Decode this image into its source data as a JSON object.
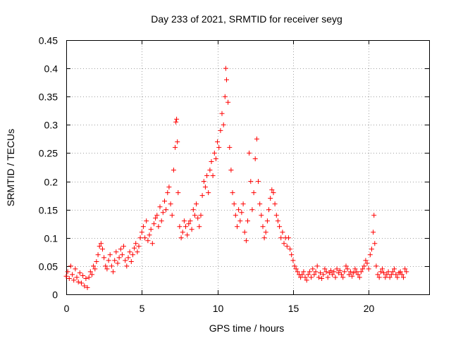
{
  "chart_data": {
    "type": "scatter",
    "title": "Day 233 of 2021, SRMTID for receiver seyg",
    "xlabel": "GPS time / hours",
    "ylabel": "SRMTID / TECUs",
    "xlim": [
      0,
      24
    ],
    "ylim": [
      0,
      0.45
    ],
    "xticks": [
      0,
      5,
      10,
      15,
      20
    ],
    "yticks": [
      0,
      0.05,
      0.1,
      0.15,
      0.2,
      0.25,
      0.3,
      0.35,
      0.4,
      0.45
    ],
    "xtick_labels": [
      "0",
      "5",
      "10",
      "15",
      "20"
    ],
    "ytick_labels": [
      "0",
      "0.05",
      "0.1",
      "0.15",
      "0.2",
      "0.25",
      "0.3",
      "0.35",
      "0.4",
      "0.45"
    ],
    "grid": true,
    "marker": "+",
    "color": "#ff0000",
    "series": [
      {
        "name": "SRMTID",
        "points": [
          [
            0.0,
            0.032
          ],
          [
            0.1,
            0.04
          ],
          [
            0.2,
            0.028
          ],
          [
            0.3,
            0.05
          ],
          [
            0.4,
            0.035
          ],
          [
            0.5,
            0.025
          ],
          [
            0.6,
            0.045
          ],
          [
            0.7,
            0.03
          ],
          [
            0.8,
            0.022
          ],
          [
            0.9,
            0.038
          ],
          [
            1.0,
            0.02
          ],
          [
            1.1,
            0.033
          ],
          [
            1.2,
            0.015
          ],
          [
            1.3,
            0.028
          ],
          [
            1.4,
            0.012
          ],
          [
            1.5,
            0.03
          ],
          [
            1.6,
            0.04
          ],
          [
            1.7,
            0.035
          ],
          [
            1.8,
            0.05
          ],
          [
            1.9,
            0.045
          ],
          [
            2.0,
            0.058
          ],
          [
            2.1,
            0.07
          ],
          [
            2.2,
            0.085
          ],
          [
            2.3,
            0.09
          ],
          [
            2.4,
            0.08
          ],
          [
            2.5,
            0.065
          ],
          [
            2.6,
            0.05
          ],
          [
            2.7,
            0.045
          ],
          [
            2.8,
            0.06
          ],
          [
            2.9,
            0.07
          ],
          [
            3.0,
            0.05
          ],
          [
            3.1,
            0.04
          ],
          [
            3.2,
            0.06
          ],
          [
            3.3,
            0.075
          ],
          [
            3.4,
            0.055
          ],
          [
            3.5,
            0.065
          ],
          [
            3.6,
            0.08
          ],
          [
            3.7,
            0.07
          ],
          [
            3.8,
            0.085
          ],
          [
            3.9,
            0.06
          ],
          [
            4.0,
            0.05
          ],
          [
            4.1,
            0.065
          ],
          [
            4.2,
            0.075
          ],
          [
            4.3,
            0.058
          ],
          [
            4.4,
            0.07
          ],
          [
            4.5,
            0.082
          ],
          [
            4.6,
            0.09
          ],
          [
            4.7,
            0.075
          ],
          [
            4.8,
            0.085
          ],
          [
            4.9,
            0.1
          ],
          [
            5.0,
            0.11
          ],
          [
            5.1,
            0.12
          ],
          [
            5.2,
            0.1
          ],
          [
            5.3,
            0.13
          ],
          [
            5.4,
            0.095
          ],
          [
            5.5,
            0.105
          ],
          [
            5.6,
            0.115
          ],
          [
            5.7,
            0.09
          ],
          [
            5.8,
            0.125
          ],
          [
            5.9,
            0.135
          ],
          [
            6.0,
            0.14
          ],
          [
            6.1,
            0.12
          ],
          [
            6.2,
            0.155
          ],
          [
            6.3,
            0.13
          ],
          [
            6.4,
            0.145
          ],
          [
            6.5,
            0.165
          ],
          [
            6.6,
            0.15
          ],
          [
            6.7,
            0.18
          ],
          [
            6.8,
            0.19
          ],
          [
            6.9,
            0.16
          ],
          [
            7.0,
            0.14
          ],
          [
            7.1,
            0.22
          ],
          [
            7.2,
            0.26
          ],
          [
            7.25,
            0.305
          ],
          [
            7.3,
            0.31
          ],
          [
            7.35,
            0.27
          ],
          [
            7.4,
            0.18
          ],
          [
            7.5,
            0.12
          ],
          [
            7.6,
            0.1
          ],
          [
            7.7,
            0.11
          ],
          [
            7.8,
            0.13
          ],
          [
            7.9,
            0.12
          ],
          [
            8.0,
            0.105
          ],
          [
            8.1,
            0.125
          ],
          [
            8.2,
            0.13
          ],
          [
            8.3,
            0.115
          ],
          [
            8.4,
            0.15
          ],
          [
            8.5,
            0.14
          ],
          [
            8.6,
            0.16
          ],
          [
            8.7,
            0.135
          ],
          [
            8.8,
            0.12
          ],
          [
            8.9,
            0.14
          ],
          [
            9.0,
            0.175
          ],
          [
            9.1,
            0.2
          ],
          [
            9.2,
            0.19
          ],
          [
            9.3,
            0.21
          ],
          [
            9.4,
            0.18
          ],
          [
            9.5,
            0.22
          ],
          [
            9.6,
            0.235
          ],
          [
            9.7,
            0.21
          ],
          [
            9.8,
            0.25
          ],
          [
            9.9,
            0.24
          ],
          [
            10.0,
            0.27
          ],
          [
            10.1,
            0.26
          ],
          [
            10.2,
            0.29
          ],
          [
            10.3,
            0.32
          ],
          [
            10.4,
            0.3
          ],
          [
            10.5,
            0.35
          ],
          [
            10.55,
            0.4
          ],
          [
            10.6,
            0.38
          ],
          [
            10.7,
            0.34
          ],
          [
            10.8,
            0.26
          ],
          [
            10.9,
            0.22
          ],
          [
            11.0,
            0.18
          ],
          [
            11.1,
            0.16
          ],
          [
            11.2,
            0.14
          ],
          [
            11.3,
            0.12
          ],
          [
            11.4,
            0.15
          ],
          [
            11.5,
            0.13
          ],
          [
            11.6,
            0.145
          ],
          [
            11.7,
            0.16
          ],
          [
            11.8,
            0.11
          ],
          [
            11.9,
            0.095
          ],
          [
            12.0,
            0.13
          ],
          [
            12.1,
            0.25
          ],
          [
            12.2,
            0.2
          ],
          [
            12.3,
            0.15
          ],
          [
            12.4,
            0.18
          ],
          [
            12.5,
            0.24
          ],
          [
            12.6,
            0.275
          ],
          [
            12.7,
            0.2
          ],
          [
            12.8,
            0.16
          ],
          [
            12.9,
            0.14
          ],
          [
            13.0,
            0.12
          ],
          [
            13.1,
            0.1
          ],
          [
            13.2,
            0.11
          ],
          [
            13.3,
            0.13
          ],
          [
            13.4,
            0.15
          ],
          [
            13.5,
            0.17
          ],
          [
            13.6,
            0.185
          ],
          [
            13.7,
            0.18
          ],
          [
            13.8,
            0.16
          ],
          [
            13.9,
            0.14
          ],
          [
            14.0,
            0.13
          ],
          [
            14.1,
            0.12
          ],
          [
            14.2,
            0.1
          ],
          [
            14.3,
            0.11
          ],
          [
            14.4,
            0.09
          ],
          [
            14.5,
            0.1
          ],
          [
            14.6,
            0.085
          ],
          [
            14.7,
            0.1
          ],
          [
            14.8,
            0.08
          ],
          [
            14.9,
            0.07
          ],
          [
            15.0,
            0.06
          ],
          [
            15.1,
            0.05
          ],
          [
            15.2,
            0.045
          ],
          [
            15.3,
            0.04
          ],
          [
            15.4,
            0.035
          ],
          [
            15.5,
            0.03
          ],
          [
            15.6,
            0.035
          ],
          [
            15.7,
            0.04
          ],
          [
            15.8,
            0.03
          ],
          [
            15.9,
            0.025
          ],
          [
            16.0,
            0.035
          ],
          [
            16.1,
            0.04
          ],
          [
            16.2,
            0.03
          ],
          [
            16.3,
            0.045
          ],
          [
            16.4,
            0.035
          ],
          [
            16.5,
            0.04
          ],
          [
            16.6,
            0.05
          ],
          [
            16.7,
            0.03
          ],
          [
            16.8,
            0.038
          ],
          [
            16.9,
            0.028
          ],
          [
            17.0,
            0.035
          ],
          [
            17.1,
            0.045
          ],
          [
            17.2,
            0.04
          ],
          [
            17.3,
            0.03
          ],
          [
            17.4,
            0.038
          ],
          [
            17.5,
            0.042
          ],
          [
            17.6,
            0.035
          ],
          [
            17.7,
            0.04
          ],
          [
            17.8,
            0.03
          ],
          [
            17.9,
            0.045
          ],
          [
            18.0,
            0.038
          ],
          [
            18.1,
            0.042
          ],
          [
            18.2,
            0.035
          ],
          [
            18.3,
            0.03
          ],
          [
            18.4,
            0.04
          ],
          [
            18.5,
            0.05
          ],
          [
            18.6,
            0.045
          ],
          [
            18.7,
            0.035
          ],
          [
            18.8,
            0.04
          ],
          [
            18.9,
            0.032
          ],
          [
            19.0,
            0.038
          ],
          [
            19.1,
            0.045
          ],
          [
            19.2,
            0.04
          ],
          [
            19.3,
            0.035
          ],
          [
            19.4,
            0.03
          ],
          [
            19.5,
            0.04
          ],
          [
            19.6,
            0.045
          ],
          [
            19.7,
            0.05
          ],
          [
            19.8,
            0.06
          ],
          [
            19.9,
            0.055
          ],
          [
            20.0,
            0.045
          ],
          [
            20.1,
            0.07
          ],
          [
            20.2,
            0.08
          ],
          [
            20.3,
            0.11
          ],
          [
            20.35,
            0.14
          ],
          [
            20.4,
            0.09
          ],
          [
            20.5,
            0.05
          ],
          [
            20.6,
            0.035
          ],
          [
            20.7,
            0.03
          ],
          [
            20.8,
            0.04
          ],
          [
            20.9,
            0.045
          ],
          [
            21.0,
            0.038
          ],
          [
            21.1,
            0.03
          ],
          [
            21.2,
            0.035
          ],
          [
            21.3,
            0.04
          ],
          [
            21.4,
            0.03
          ],
          [
            21.5,
            0.035
          ],
          [
            21.6,
            0.04
          ],
          [
            21.7,
            0.045
          ],
          [
            21.8,
            0.035
          ],
          [
            21.9,
            0.03
          ],
          [
            22.0,
            0.038
          ],
          [
            22.1,
            0.04
          ],
          [
            22.2,
            0.035
          ],
          [
            22.3,
            0.03
          ],
          [
            22.4,
            0.045
          ],
          [
            22.5,
            0.04
          ]
        ]
      }
    ]
  }
}
